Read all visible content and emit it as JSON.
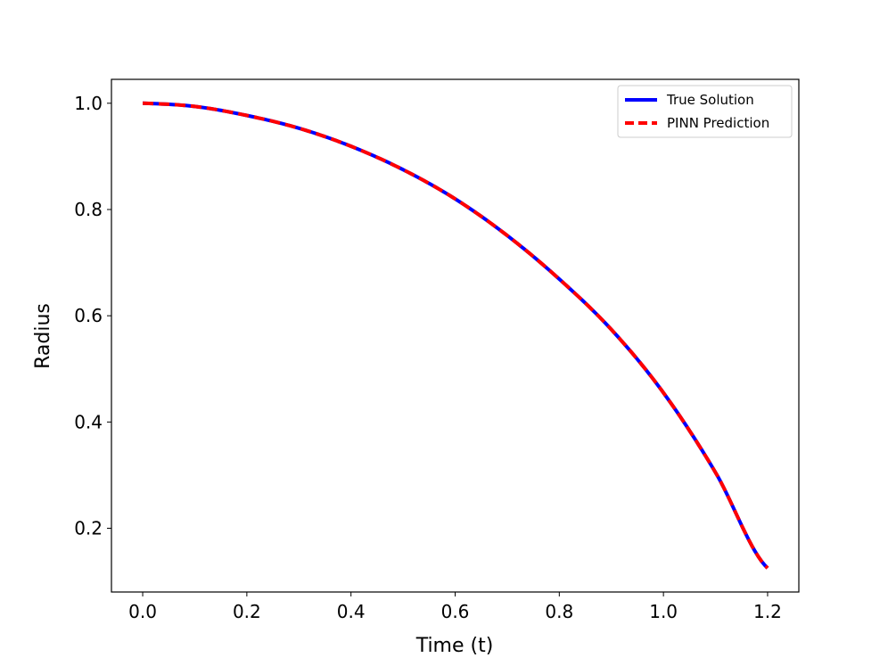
{
  "chart_data": {
    "type": "line",
    "title": "",
    "xlabel": "Time (t)",
    "ylabel": "Radius",
    "xlim": [
      -0.06,
      1.26
    ],
    "ylim": [
      0.08,
      1.045
    ],
    "xticks": [
      "0.0",
      "0.2",
      "0.4",
      "0.6",
      "0.8",
      "1.0",
      "1.2"
    ],
    "yticks": [
      "0.2",
      "0.4",
      "0.6",
      "0.8",
      "1.0"
    ],
    "grid": false,
    "legend_position": "top-right",
    "x": [
      0.0,
      0.1,
      0.2,
      0.3,
      0.4,
      0.5,
      0.6,
      0.7,
      0.8,
      0.9,
      1.0,
      1.1,
      1.2
    ],
    "series": [
      {
        "name": "True Solution",
        "color": "#0000ff",
        "style": "solid",
        "values": [
          1.0,
          0.994,
          0.977,
          0.953,
          0.919,
          0.875,
          0.82,
          0.751,
          0.669,
          0.574,
          0.455,
          0.305,
          0.125
        ]
      },
      {
        "name": "PINN Prediction",
        "color": "#ff0000",
        "style": "dashed",
        "values": [
          1.0,
          0.994,
          0.977,
          0.953,
          0.919,
          0.875,
          0.82,
          0.751,
          0.669,
          0.574,
          0.455,
          0.305,
          0.125
        ]
      }
    ]
  }
}
